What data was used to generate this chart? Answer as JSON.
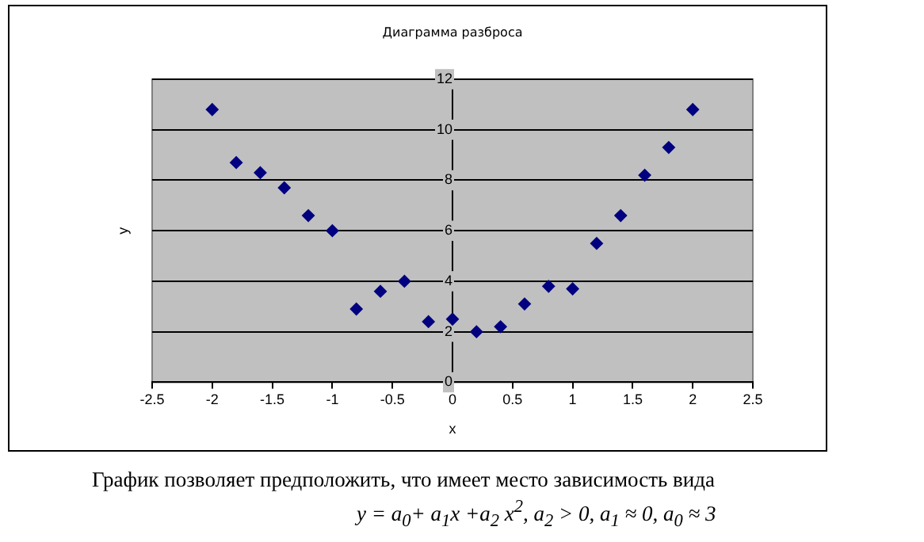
{
  "chart_data": {
    "type": "scatter",
    "title": "Диаграмма разброса",
    "xlabel": "x",
    "ylabel": "y",
    "x": [
      -2,
      -1.8,
      -1.6,
      -1.4,
      -1.2,
      -1,
      -0.8,
      -0.6,
      -0.4,
      -0.2,
      0,
      0.2,
      0.4,
      0.6,
      0.8,
      1,
      1.2,
      1.4,
      1.6,
      1.8,
      2
    ],
    "series": [
      {
        "color": "#000080",
        "values": [
          10.8,
          8.7,
          8.3,
          7.7,
          6.6,
          6.0,
          2.9,
          3.6,
          4.0,
          2.4,
          2.5,
          2.0,
          2.2,
          3.1,
          3.8,
          3.7,
          5.5,
          6.6,
          8.2,
          9.3,
          10.8
        ]
      }
    ],
    "xlim": [
      -2.5,
      2.5
    ],
    "xticks": [
      -2.5,
      -2,
      -1.5,
      -1,
      -0.5,
      0,
      0.5,
      1,
      1.5,
      2,
      2.5
    ],
    "ylim": [
      0,
      12
    ],
    "yticks": [
      0,
      2,
      4,
      6,
      8,
      10,
      12
    ],
    "grid": "y",
    "legend": false,
    "marker": "diamond",
    "annotations": [
      "График позволяет предположить, что имеет место зависимость вида",
      "y = a$_{0}$+ a$_{1}$x +a$_{2}$ x$^{2}$, a$_{2}$ > 0, a$_{1}$ ≈ 0, a$_{0}$ ≈ 3"
    ]
  }
}
